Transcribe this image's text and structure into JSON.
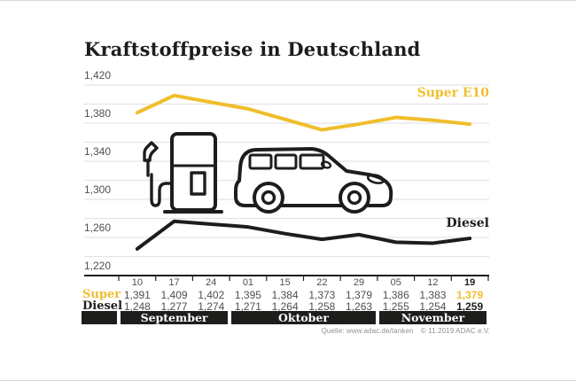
{
  "title": "Kraftstoffpreise in Deutschland",
  "colors": {
    "super_yellow": "#f0be2c",
    "diesel_black": "#1d1d1b",
    "gridline_gray": "#e4e4e4",
    "text_gray": "#4f4f4f",
    "month_bar_bg": "#1d1d1b",
    "month_bar_text": "#ffffff"
  },
  "icons": {
    "pump": "fuel-pump-icon",
    "car": "car-icon"
  },
  "chart_data": {
    "type": "line",
    "title": "Kraftstoffpreise in Deutschland",
    "x": [
      "10",
      "17",
      "24",
      "01",
      "15",
      "22",
      "29",
      "05",
      "12",
      "19"
    ],
    "series": [
      {
        "name": "Super E10",
        "color": "#f0be2c",
        "values": [
          1.391,
          1.409,
          1.402,
          1.395,
          1.384,
          1.373,
          1.379,
          1.386,
          1.383,
          1.379
        ]
      },
      {
        "name": "Diesel",
        "color": "#1d1d1b",
        "values": [
          1.248,
          1.277,
          1.274,
          1.271,
          1.264,
          1.258,
          1.263,
          1.255,
          1.254,
          1.259
        ]
      }
    ],
    "ylim": [
      1.22,
      1.42
    ],
    "y_minor_step": 0.02,
    "y_axis_labels": [
      "1,420",
      "1,380",
      "1,340",
      "1,300",
      "1,260",
      "1,220"
    ],
    "grid": true,
    "legend_position": "right-inline",
    "months": [
      {
        "label": "September",
        "cols": 3
      },
      {
        "label": "Oktober",
        "cols": 4
      },
      {
        "label": "November",
        "cols": 3
      }
    ]
  },
  "table": {
    "row_labels": {
      "super": "Super",
      "diesel": "Diesel"
    },
    "dates": [
      "10",
      "17",
      "24",
      "01",
      "15",
      "22",
      "29",
      "05",
      "12",
      "19"
    ],
    "super_values": [
      "1,391",
      "1,409",
      "1,402",
      "1,395",
      "1,384",
      "1,373",
      "1,379",
      "1,386",
      "1,383",
      "1,379"
    ],
    "diesel_values": [
      "1,248",
      "1,277",
      "1,274",
      "1,271",
      "1,264",
      "1,258",
      "1,263",
      "1,255",
      "1,254",
      "1,259"
    ]
  },
  "footer": {
    "source": "Quelle: www.adac.de/tanken",
    "copyright": "© 11.2019 ADAC e.V."
  }
}
